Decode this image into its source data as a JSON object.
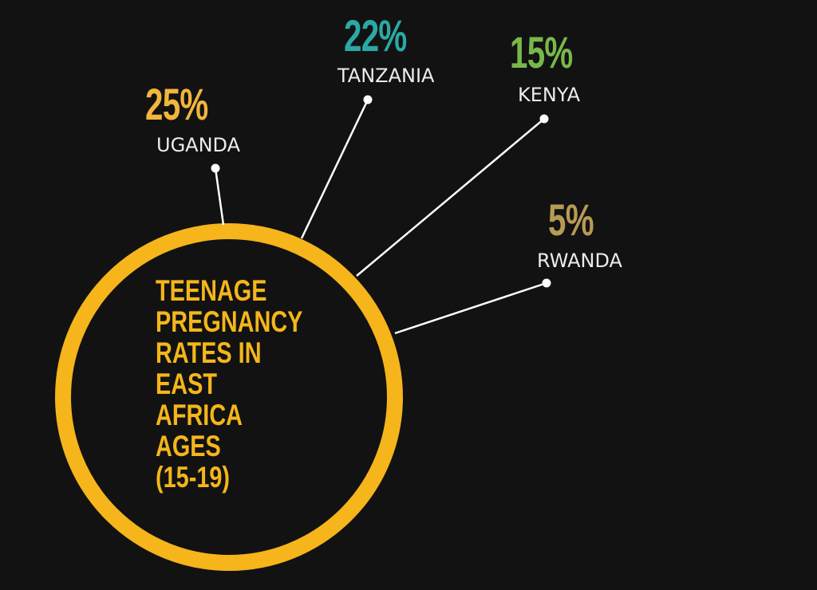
{
  "chart_data": {
    "type": "other",
    "title_lines": [
      "TEENAGE",
      "PREGNANCY",
      "RATES IN",
      "EAST",
      "AFRICA",
      "AGES",
      "(15-19)"
    ],
    "categories": [
      "UGANDA",
      "TANZANIA",
      "KENYA",
      "RWANDA"
    ],
    "values": [
      25,
      22,
      15,
      5
    ],
    "value_labels": [
      "25%",
      "22%",
      "15%",
      "5%"
    ],
    "colors": [
      "#f2b53c",
      "#2aa9a4",
      "#78b84a",
      "#b79a54"
    ],
    "circle_color": "#f5b51b",
    "connector_color": "#ffffff"
  }
}
